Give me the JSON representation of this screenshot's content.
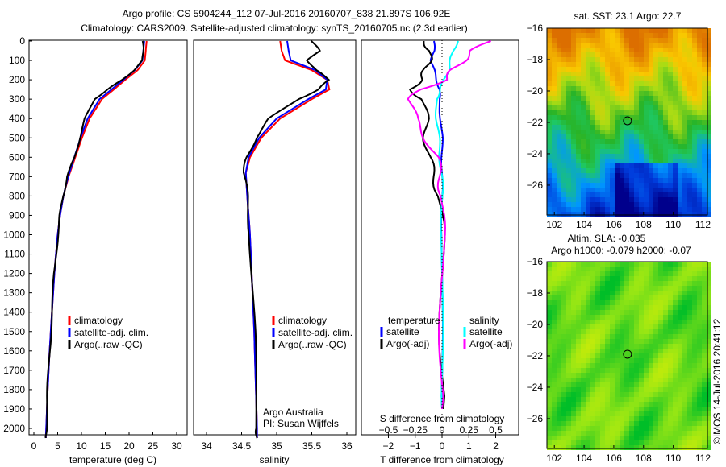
{
  "title_line1": "Argo profile: CS 5904244_112 07-Jul-2016 20160707_838 21.897S 106.92E",
  "title_line2": "Climatology: CARS2009. Satellite-adjusted climatology: synTS_20160705.nc (2.3d earlier)",
  "side_label": "©IMOS 14-Jul-2016 20:41:12",
  "colors": {
    "climatology": "#ff0000",
    "satellite": "#0000ff",
    "argo": "#000000",
    "s_satellite": "#00ffff",
    "s_argo": "#ff00ff"
  },
  "chart_data": [
    {
      "type": "line",
      "name": "temperature",
      "xlabel": "temperature (deg C)",
      "xlim": [
        -1,
        31
      ],
      "xticks": [
        0,
        5,
        10,
        15,
        20,
        25,
        30
      ],
      "ylim": [
        2050,
        0
      ],
      "yticks": [
        0,
        100,
        200,
        300,
        400,
        500,
        600,
        700,
        800,
        900,
        1000,
        1100,
        1200,
        1300,
        1400,
        1500,
        1600,
        1700,
        1800,
        1900,
        2000
      ],
      "legend": [
        "climatology",
        "satellite-adj. clim.",
        "Argo(..raw -QC)"
      ],
      "depth": [
        0,
        50,
        100,
        150,
        200,
        250,
        300,
        400,
        500,
        600,
        700,
        800,
        900,
        1000,
        1200,
        1400,
        1600,
        1800,
        2000,
        2050
      ],
      "series": [
        {
          "name": "climatology",
          "values": [
            23.7,
            23.5,
            23.3,
            21.8,
            19.2,
            16.8,
            14.3,
            11.7,
            10.1,
            8.7,
            7.3,
            6.2,
            5.5,
            5.0,
            4.3,
            3.8,
            3.3,
            2.9,
            2.6,
            2.5
          ]
        },
        {
          "name": "satellite-adj. clim.",
          "values": [
            23.2,
            23.0,
            22.8,
            21.2,
            18.8,
            16.3,
            13.8,
            11.3,
            9.8,
            8.5,
            7.2,
            6.2,
            5.5,
            5.0,
            4.3,
            3.8,
            3.3,
            2.9,
            2.6,
            2.5
          ]
        },
        {
          "name": "Argo(..raw -QC)",
          "values": [
            22.9,
            22.9,
            22.9,
            21.0,
            18.6,
            15.5,
            12.7,
            10.8,
            9.6,
            8.6,
            7.0,
            6.1,
            5.5,
            5.0,
            4.3,
            3.8,
            3.3,
            2.9,
            2.6,
            2.5
          ]
        }
      ]
    },
    {
      "type": "line",
      "name": "salinity",
      "xlabel": "salinity",
      "xlim": [
        33.8,
        36.0
      ],
      "xticks": [
        34,
        34.5,
        35,
        35.5,
        36
      ],
      "ylim": [
        2050,
        0
      ],
      "legend": [
        "climatology",
        "satellite-adj. clim.",
        "Argo(..raw -QC)"
      ],
      "annotation": [
        "Argo Australia",
        "PI: Susan Wijffels"
      ],
      "depth": [
        0,
        50,
        100,
        150,
        200,
        250,
        300,
        400,
        500,
        600,
        680,
        800,
        1000,
        1500,
        2000,
        2050
      ],
      "series": [
        {
          "name": "climatology",
          "values": [
            35.05,
            35.07,
            35.12,
            35.5,
            35.72,
            35.75,
            35.5,
            35.05,
            34.78,
            34.62,
            34.56,
            34.58,
            34.62,
            34.68,
            34.72,
            34.72
          ]
        },
        {
          "name": "satellite-adj. clim.",
          "values": [
            35.15,
            35.17,
            35.2,
            35.55,
            35.72,
            35.7,
            35.45,
            35.0,
            34.75,
            34.6,
            34.56,
            34.58,
            34.62,
            34.68,
            34.72,
            34.72
          ]
        },
        {
          "name": "Argo(..raw -QC)",
          "values": [
            35.5,
            35.6,
            35.45,
            35.55,
            35.75,
            35.6,
            35.3,
            34.9,
            34.7,
            34.58,
            34.53,
            34.58,
            34.62,
            34.68,
            34.72,
            34.72
          ]
        }
      ]
    },
    {
      "type": "line",
      "name": "difference",
      "xlabel": "T difference from climatology",
      "xlabel2": "S difference from climatology",
      "xlim": [
        -3,
        3
      ],
      "xticks": [
        -2,
        -1,
        0,
        1,
        2
      ],
      "xticks2": [
        -0.5,
        -0.25,
        0,
        0.25,
        0.5
      ],
      "ylim": [
        2050,
        0
      ],
      "legend_titles": [
        "temperature",
        "salinity"
      ],
      "legend": [
        "satellite",
        "Argo(-adj)",
        "satellite",
        "Argo(-adj)"
      ],
      "depth": [
        0,
        50,
        100,
        150,
        200,
        250,
        300,
        400,
        500,
        600,
        700,
        800,
        1000,
        1500,
        1900
      ],
      "series": [
        {
          "name": "T satellite",
          "values": [
            -0.3,
            -0.3,
            -0.4,
            -0.3,
            -0.2,
            -0.1,
            -0.1,
            -0.05,
            0,
            0,
            0,
            0,
            0,
            0,
            0
          ]
        },
        {
          "name": "T Argo(-adj)",
          "values": [
            -0.7,
            -0.4,
            -0.5,
            -0.6,
            -0.8,
            -1.2,
            -0.7,
            -0.6,
            -0.6,
            -0.5,
            -0.3,
            -0.1,
            0,
            0,
            0.05
          ]
        },
        {
          "name": "S satellite",
          "values": [
            0.15,
            0.1,
            0.08,
            0.06,
            0.02,
            -0.02,
            -0.05,
            -0.05,
            -0.03,
            -0.02,
            0,
            0,
            0,
            0,
            0
          ]
        },
        {
          "name": "S Argo(-adj)",
          "values": [
            0.45,
            0.28,
            0.2,
            0.1,
            0.03,
            -0.2,
            -0.3,
            -0.25,
            -0.15,
            -0.05,
            -0.02,
            0,
            0,
            0,
            0
          ]
        }
      ]
    },
    {
      "type": "heatmap",
      "name": "sst-map",
      "title": "sat. SST: 23.1  Argo: 22.7",
      "xticks": [
        102,
        104,
        106,
        108,
        110,
        112
      ],
      "yticks": [
        -16,
        -18,
        -20,
        -22,
        -24,
        -26
      ],
      "xlim": [
        101.5,
        112.3
      ],
      "ylim": [
        -27.9,
        -16
      ],
      "marker": {
        "lon": 106.92,
        "lat": -21.897
      }
    },
    {
      "type": "heatmap",
      "name": "sla-map",
      "title": "Altim. SLA: -0.035",
      "subtitle": "Argo h1000: -0.079 h2000: -0.07",
      "xticks": [
        102,
        104,
        106,
        108,
        110,
        112
      ],
      "yticks": [
        -16,
        -18,
        -20,
        -22,
        -24,
        -26
      ],
      "xlim": [
        101.5,
        112.3
      ],
      "ylim": [
        -27.9,
        -16
      ],
      "marker": {
        "lon": 106.92,
        "lat": -21.897
      }
    }
  ]
}
